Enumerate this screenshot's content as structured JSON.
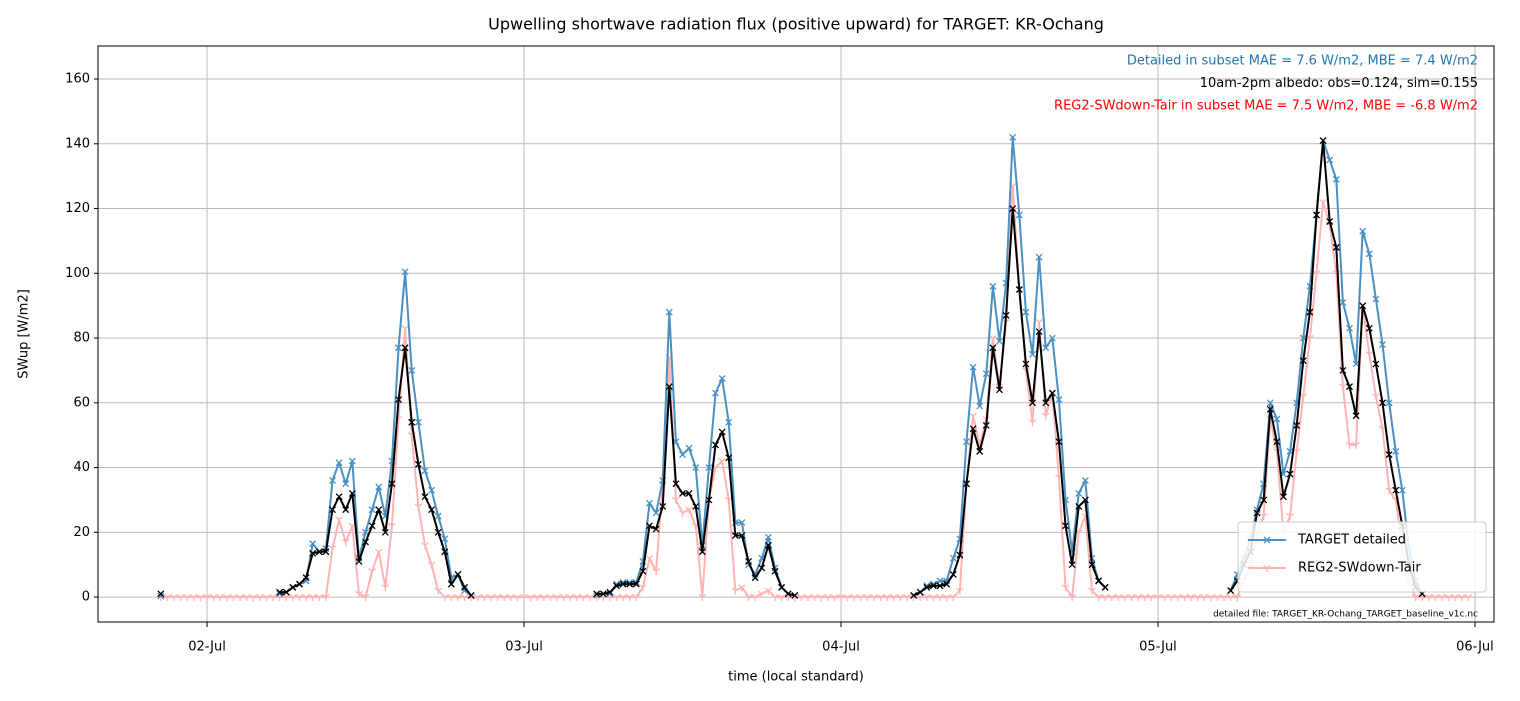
{
  "chart_data": {
    "type": "line",
    "title": "Upwelling shortwave radiation flux (positive upward) for TARGET: KR-Ochang",
    "xlabel": "time (local standard)",
    "ylabel": "SWup [W/m2]",
    "annotations": [
      {
        "text": "Detailed in subset MAE = 7.6 W/m2, MBE = 7.4 W/m2",
        "color": "#1f77b4"
      },
      {
        "text": "10am-2pm albedo: obs=0.124, sim=0.155",
        "color": "#000000"
      },
      {
        "text": "REG2-SWdown-Tair in subset MAE = 7.5 W/m2, MBE = -6.8 W/m2",
        "color": "#ff0000"
      }
    ],
    "footnote": "detailed file: TARGET_KR-Ochang_TARGET_baseline_v1c.nc",
    "xlim": [
      1.656,
      6.06
    ],
    "xticks": [
      {
        "value": 2,
        "label": "02-Jul"
      },
      {
        "value": 3,
        "label": "03-Jul"
      },
      {
        "value": 4,
        "label": "04-Jul"
      },
      {
        "value": 5,
        "label": "05-Jul"
      },
      {
        "value": 6,
        "label": "06-Jul"
      }
    ],
    "ylim": [
      -7.7,
      170.2
    ],
    "yticks": [
      0,
      20,
      40,
      60,
      80,
      100,
      120,
      140,
      160
    ],
    "grid": true,
    "legend": "lower right",
    "x": [
      1.8542,
      1.875,
      1.8958,
      1.9167,
      1.9375,
      1.9583,
      1.9792,
      2,
      2.0208,
      2.0417,
      2.0625,
      2.0833,
      2.1042,
      2.125,
      2.1458,
      2.1667,
      2.1875,
      2.2083,
      2.2292,
      2.25,
      2.2708,
      2.2917,
      2.3125,
      2.3333,
      2.3542,
      2.375,
      2.3958,
      2.4167,
      2.4375,
      2.4583,
      2.4792,
      2.5,
      2.5208,
      2.5417,
      2.5625,
      2.5833,
      2.6042,
      2.625,
      2.6458,
      2.6667,
      2.6875,
      2.7083,
      2.7292,
      2.75,
      2.7708,
      2.7917,
      2.8125,
      2.8333,
      2.8542,
      2.875,
      2.8958,
      2.9167,
      2.9375,
      2.9583,
      2.9792,
      3,
      3.0208,
      3.0417,
      3.0625,
      3.0833,
      3.1042,
      3.125,
      3.1458,
      3.1667,
      3.1875,
      3.2083,
      3.2292,
      3.25,
      3.2708,
      3.2917,
      3.3125,
      3.3333,
      3.3542,
      3.375,
      3.3958,
      3.4167,
      3.4375,
      3.4583,
      3.4792,
      3.5,
      3.5208,
      3.5417,
      3.5625,
      3.5833,
      3.6042,
      3.625,
      3.6458,
      3.6667,
      3.6875,
      3.7083,
      3.7292,
      3.75,
      3.7708,
      3.7917,
      3.8125,
      3.8333,
      3.8542,
      3.875,
      3.8958,
      3.9167,
      3.9375,
      3.9583,
      3.9792,
      4,
      4.0208,
      4.0417,
      4.0625,
      4.0833,
      4.1042,
      4.125,
      4.1458,
      4.1667,
      4.1875,
      4.2083,
      4.2292,
      4.25,
      4.2708,
      4.2917,
      4.3125,
      4.3333,
      4.3542,
      4.375,
      4.3958,
      4.4167,
      4.4375,
      4.4583,
      4.4792,
      4.5,
      4.5208,
      4.5417,
      4.5625,
      4.5833,
      4.6042,
      4.625,
      4.6458,
      4.6667,
      4.6875,
      4.7083,
      4.7292,
      4.75,
      4.7708,
      4.7917,
      4.8125,
      4.8333,
      4.8542,
      4.875,
      4.8958,
      4.9167,
      4.9375,
      4.9583,
      4.9792,
      5,
      5.0208,
      5.0417,
      5.0625,
      5.0833,
      5.1042,
      5.125,
      5.1458,
      5.1667,
      5.1875,
      5.2083,
      5.2292,
      5.25,
      5.2708,
      5.2917,
      5.3125,
      5.3333,
      5.3542,
      5.375,
      5.3958,
      5.4167,
      5.4375,
      5.4583,
      5.4792,
      5.5,
      5.5208,
      5.5417,
      5.5625,
      5.5833,
      5.6042,
      5.625,
      5.6458,
      5.6667,
      5.6875,
      5.7083,
      5.7292,
      5.75,
      5.7708,
      5.7917,
      5.8125,
      5.8333,
      5.8542,
      5.875,
      5.8958,
      5.9167,
      5.9375,
      5.9583,
      5.9792
    ],
    "series": [
      {
        "name": "REG2-SWdown-Tair",
        "color": "#ffb3b3",
        "marker": "tri",
        "values": [
          0,
          0,
          0,
          0,
          0,
          0,
          0,
          0,
          0,
          0,
          0,
          0,
          0,
          0,
          0,
          0,
          0,
          0,
          0,
          0,
          0,
          0,
          0,
          0,
          0,
          0,
          15,
          24,
          17,
          22,
          1,
          0,
          8,
          14,
          3,
          22,
          55,
          83,
          50,
          28,
          16,
          10,
          2,
          0,
          0,
          0,
          0,
          0,
          0,
          0,
          0,
          0,
          0,
          0,
          0,
          0,
          0,
          0,
          0,
          0,
          0,
          0,
          0,
          0,
          0,
          0,
          0,
          0,
          0,
          0,
          0,
          0,
          0,
          3,
          12,
          8,
          35,
          74,
          30,
          26,
          27,
          22,
          0,
          30,
          40,
          42,
          30,
          2,
          3,
          0,
          0,
          1,
          2,
          0,
          0,
          0,
          0,
          0,
          0,
          0,
          0,
          0,
          0,
          0,
          0,
          0,
          0,
          0,
          0,
          0,
          0,
          0,
          0,
          0,
          0,
          0,
          0,
          0,
          0,
          0,
          0,
          2,
          35,
          56,
          47,
          55,
          80,
          65,
          85,
          127,
          95,
          70,
          54,
          85,
          56,
          63,
          37,
          3,
          0,
          20,
          25,
          2,
          0,
          0,
          0,
          0,
          0,
          0,
          0,
          0,
          0,
          0,
          0,
          0,
          0,
          0,
          0,
          0,
          0,
          0,
          0,
          0,
          0,
          0,
          5,
          10,
          20,
          25,
          55,
          45,
          20,
          25,
          45,
          62,
          80,
          100,
          122,
          115,
          100,
          65,
          47,
          47,
          90,
          75,
          62,
          52,
          33,
          30,
          15,
          5,
          0,
          0,
          0,
          0,
          0,
          0,
          0,
          0,
          0
        ]
      },
      {
        "name": "TARGET detailed",
        "color": "#4a90c2",
        "marker": "x",
        "values": [
          0.3,
          null,
          null,
          null,
          null,
          null,
          null,
          null,
          null,
          null,
          null,
          null,
          null,
          null,
          null,
          null,
          null,
          null,
          1,
          1.5,
          3,
          4,
          5,
          16.5,
          14,
          15,
          36,
          41.5,
          35,
          42,
          12,
          20,
          27,
          34,
          25,
          42,
          77,
          100.5,
          70,
          54,
          39,
          33,
          25,
          18,
          6,
          7,
          2,
          0.5,
          null,
          null,
          null,
          null,
          null,
          null,
          null,
          null,
          null,
          null,
          null,
          null,
          null,
          null,
          null,
          null,
          null,
          null,
          0.5,
          1,
          1,
          4,
          4.5,
          4.5,
          4.5,
          11,
          29,
          26,
          36,
          88,
          48,
          44,
          46,
          40,
          16,
          40,
          63,
          67.5,
          54,
          23,
          23,
          10,
          7,
          12,
          18.5,
          9,
          3,
          1,
          0.5,
          null,
          null,
          null,
          null,
          null,
          null,
          null,
          null,
          null,
          null,
          null,
          null,
          null,
          null,
          null,
          null,
          null,
          0.5,
          1.5,
          3.5,
          4,
          5,
          5,
          12,
          18,
          48,
          71,
          59,
          69,
          96,
          79,
          97,
          142,
          118,
          88,
          75,
          105,
          77,
          80,
          61,
          30,
          14,
          32,
          36,
          12,
          5,
          3,
          null,
          null,
          null,
          null,
          null,
          null,
          null,
          null,
          null,
          null,
          null,
          null,
          null,
          null,
          null,
          null,
          null,
          null,
          2,
          7,
          12,
          18,
          27,
          35,
          60,
          55,
          38,
          45,
          60,
          80,
          96,
          118,
          141,
          135,
          129,
          91,
          83,
          72,
          113,
          106,
          92,
          78,
          60,
          45,
          33,
          15,
          5,
          1,
          null,
          null,
          null,
          null,
          null,
          null,
          null
        ]
      },
      {
        "color": "#000000",
        "marker": "x",
        "values": [
          1,
          null,
          null,
          null,
          null,
          null,
          null,
          null,
          null,
          null,
          null,
          null,
          null,
          null,
          null,
          null,
          null,
          null,
          1.5,
          1.5,
          3,
          4,
          6,
          13.5,
          14,
          14,
          27,
          31,
          27,
          32,
          11,
          17,
          22,
          27,
          20,
          35,
          61,
          77,
          54,
          41,
          31,
          27,
          20,
          14,
          4,
          7,
          3,
          0.5,
          null,
          null,
          null,
          null,
          null,
          null,
          null,
          null,
          null,
          null,
          null,
          null,
          null,
          null,
          null,
          null,
          null,
          null,
          1,
          1,
          1.5,
          3.5,
          4,
          4,
          4,
          8,
          22,
          21,
          28,
          65,
          35,
          32,
          32,
          28,
          14,
          30,
          47,
          51,
          43,
          19,
          19,
          11,
          6,
          9,
          16,
          8,
          3,
          1,
          0.5,
          null,
          null,
          null,
          null,
          null,
          null,
          null,
          null,
          null,
          null,
          null,
          null,
          null,
          null,
          null,
          null,
          null,
          0.5,
          1.5,
          3,
          3.5,
          3.5,
          4,
          7,
          13,
          35,
          52,
          45,
          53,
          77,
          64,
          87,
          120,
          95,
          72,
          60,
          82,
          60,
          63,
          48,
          22,
          10,
          28,
          30,
          10,
          5,
          3,
          null,
          null,
          null,
          null,
          null,
          null,
          null,
          null,
          null,
          null,
          null,
          null,
          null,
          null,
          null,
          null,
          null,
          null,
          2,
          5,
          10,
          14,
          26,
          30,
          58,
          48,
          31,
          38,
          53,
          73,
          88,
          118,
          141,
          116,
          108,
          70,
          65,
          56,
          90,
          83,
          72,
          60,
          44,
          33,
          22,
          10,
          3,
          1,
          null,
          null,
          null,
          null,
          null,
          null,
          null
        ]
      }
    ]
  }
}
